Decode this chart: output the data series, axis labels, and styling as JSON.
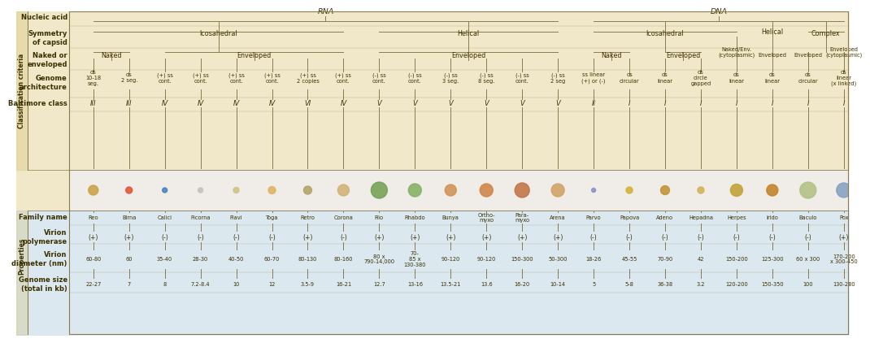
{
  "bg_top": "#f0e8c8",
  "bg_strip": "#f0ece8",
  "bg_bottom": "#dce8f0",
  "text_color": "#3a3000",
  "line_color": "#8a7a50",
  "sidebar_bg": "#d4c070",
  "families": [
    "Reo",
    "Birna",
    "Calici",
    "Picorna",
    "Flavi",
    "Toga",
    "Retro",
    "Corona",
    "Filo",
    "Rhabdo",
    "Bunya",
    "Ortho-\nmyxo",
    "Para-\nmyxo",
    "Arena",
    "Parvo",
    "Papova",
    "Adeno",
    "Hepadna",
    "Herpes",
    "Irido",
    "Baculo",
    "Pox"
  ],
  "n_families": 22,
  "genome_arch": [
    "ds\n10-18\nseg.",
    "ds\n2 seg.",
    "(+) ss\ncont.",
    "(+) ss\ncont.",
    "(+) ss\ncont.",
    "(+) ss\ncont.",
    "(+) ss\n2 copies",
    "(+) ss\ncont.",
    "(-) ss\ncont.",
    "(-) ss\ncont.",
    "(-) ss\n3 seg.",
    "(-) ss\n8 seg.",
    "(-) ss\ncont.",
    "(-) ss\n2 seg",
    "ss linear\n(+) or (-)",
    "ds\ncircular",
    "ds\nlinear",
    "ds\ncircle\ngapped",
    "ds\nlinear",
    "ds\nlinear",
    "ds\ncircular",
    "ds\nlinear\n(x linked)"
  ],
  "baltimore": [
    "III",
    "III",
    "IV",
    "IV",
    "IV",
    "IV",
    "VI",
    "IV",
    "V",
    "V",
    "V",
    "V",
    "V",
    "V",
    "II",
    "I",
    "I",
    "I",
    "I",
    "I",
    "I",
    "I"
  ],
  "virion_polymerase": [
    "+",
    "+",
    "-",
    "-",
    "-",
    "-",
    "+",
    "-",
    "+",
    "+",
    "+",
    "+",
    "+",
    "+",
    "-",
    "-",
    "-",
    "-",
    "-",
    "-",
    "-",
    "+"
  ],
  "virion_diameter": [
    "60-80",
    "60",
    "35-40",
    "28-30",
    "40-50",
    "60-70",
    "80-130",
    "80-160",
    "80 x\n790-14,000",
    "70-\n85 x\n130-380",
    "90-120",
    "90-120",
    "150-300",
    "50-300",
    "18-26",
    "45-55",
    "70-90",
    "42",
    "150-200",
    "125-300",
    "60 x 300",
    "170-200\nx 300-450"
  ],
  "genome_size": [
    "22-27",
    "7",
    "8",
    "7.2-8.4",
    "10",
    "12",
    "3.5-9",
    "16-21",
    "12.7",
    "13-16",
    "13.5-21",
    "13.6",
    "16-20",
    "10-14",
    "5",
    "5-8",
    "36-38",
    "3.2",
    "120-200",
    "150-350",
    "100",
    "130-280"
  ]
}
